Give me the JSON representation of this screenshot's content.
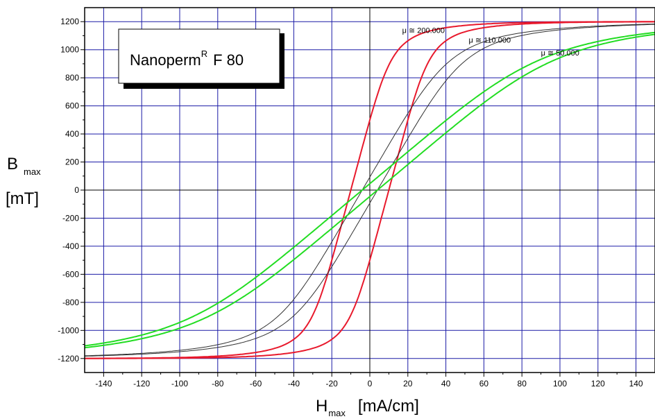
{
  "chart_data": {
    "type": "line",
    "title_box": {
      "text": "Nanoperm",
      "superscript": "R",
      "suffix": "F 80"
    },
    "xlabel": {
      "main": "H",
      "sub": "max",
      "unit": "[mA/cm]"
    },
    "ylabel": {
      "main": "B",
      "sub": "max",
      "unit": "[mT]"
    },
    "xlim": [
      -150,
      150
    ],
    "ylim": [
      -1300,
      1300
    ],
    "x_ticks": [
      -140,
      -120,
      -100,
      -80,
      -60,
      -40,
      -20,
      0,
      20,
      40,
      60,
      80,
      100,
      120,
      140
    ],
    "y_ticks": [
      1200,
      1000,
      800,
      600,
      400,
      200,
      0,
      -200,
      -400,
      -600,
      -800,
      -1000,
      -1200
    ],
    "grid": true,
    "colors": {
      "grid": "#1a1aa6",
      "red": "#e8192c",
      "black": "#303030",
      "green": "#22dd22"
    },
    "series": [
      {
        "name": "μ ≅ 200.000",
        "color": "red",
        "Hs": 22,
        "c": 10,
        "Bs": 1200,
        "d": 0.85
      },
      {
        "name": "μ ≅ 110.000",
        "color": "black",
        "Hs": 48,
        "c": 4,
        "Bs": 1200,
        "d": 0.85
      },
      {
        "name": "μ ≅ 50.000",
        "color": "green",
        "Hs": 100,
        "c": 4,
        "Bs": 1230,
        "d": 0.85
      }
    ],
    "annotations": [
      {
        "text": "μ ≅ 200.000",
        "x": 17,
        "y": 1120
      },
      {
        "text": "μ ≅ 110.000",
        "x": 52,
        "y": 1050
      },
      {
        "text": "μ ≅ 50.000",
        "x": 90,
        "y": 960
      }
    ]
  }
}
